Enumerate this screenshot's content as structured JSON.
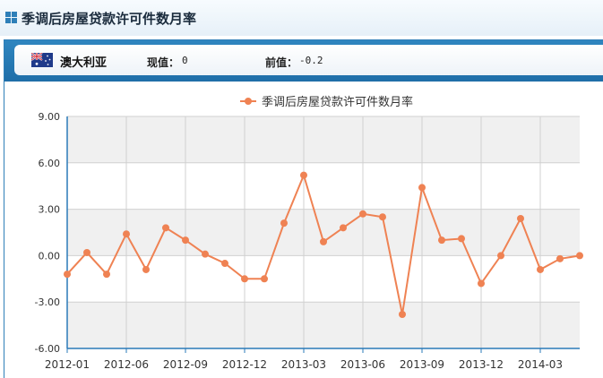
{
  "header": {
    "title": "季调后房屋贷款许可件数月率"
  },
  "info": {
    "country": "澳大利亚",
    "current_label": "现值：",
    "current_value": "0",
    "previous_label": "前值：",
    "previous_value": "-0.2"
  },
  "colors": {
    "series": "#ef8253",
    "axis": "#2a7ab8",
    "band": "#f0f0f0",
    "grid": "#d0d0d0"
  },
  "chart_data": {
    "type": "line",
    "legend_position": "top-center",
    "grid": true,
    "y_ticks": [
      "9.00",
      "6.00",
      "3.00",
      "0.00",
      "-3.00",
      "-6.00"
    ],
    "ylim": [
      -6,
      9
    ],
    "x_ticks": [
      {
        "i": 0,
        "label": "2012-01"
      },
      {
        "i": 3,
        "label": "2012-06"
      },
      {
        "i": 6,
        "label": "2012-09"
      },
      {
        "i": 9,
        "label": "2012-12"
      },
      {
        "i": 12,
        "label": "2013-03"
      },
      {
        "i": 15,
        "label": "2013-06"
      },
      {
        "i": 18,
        "label": "2013-09"
      },
      {
        "i": 21,
        "label": "2013-12"
      },
      {
        "i": 24,
        "label": "2014-03"
      }
    ],
    "series": [
      {
        "name": "季调后房屋贷款许可件数月率",
        "values": [
          -1.2,
          0.2,
          -1.2,
          1.4,
          -0.9,
          1.8,
          1.0,
          0.1,
          -0.5,
          -1.5,
          -1.5,
          2.1,
          5.2,
          0.9,
          1.8,
          2.7,
          2.5,
          -3.8,
          4.4,
          1.0,
          1.1,
          -1.8,
          0.0,
          2.4,
          -0.9,
          -0.2,
          0.0
        ]
      }
    ]
  }
}
